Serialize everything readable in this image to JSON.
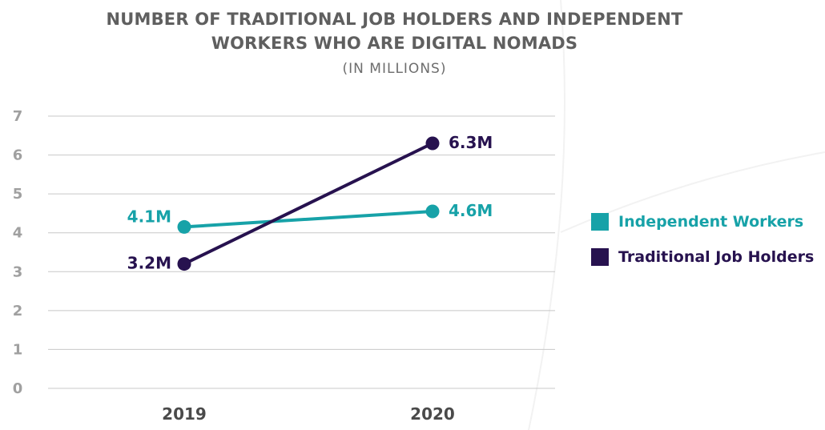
{
  "chart_data": {
    "type": "line",
    "title": "NUMBER OF TRADITIONAL JOB HOLDERS AND INDEPENDENT WORKERS WHO ARE DIGITAL NOMADS",
    "title_lines": [
      "NUMBER OF TRADITIONAL JOB HOLDERS AND INDEPENDENT",
      "WORKERS WHO ARE DIGITAL NOMADS"
    ],
    "subtitle": "(IN MILLIONS)",
    "x": [
      "2019",
      "2020"
    ],
    "ylim": [
      0,
      7
    ],
    "yticks": [
      "0",
      "1",
      "2",
      "3",
      "4",
      "5",
      "6",
      "7"
    ],
    "grid": true,
    "legend_position": "right",
    "series": [
      {
        "name": "Independent Workers",
        "values": [
          4.15,
          4.55
        ],
        "labels": [
          "4.1M",
          "4.6M"
        ],
        "color": "#17a2a8"
      },
      {
        "name": "Traditional Job Holders",
        "values": [
          3.2,
          6.3
        ],
        "labels": [
          "3.2M",
          "6.3M"
        ],
        "color": "#27124f"
      }
    ]
  }
}
